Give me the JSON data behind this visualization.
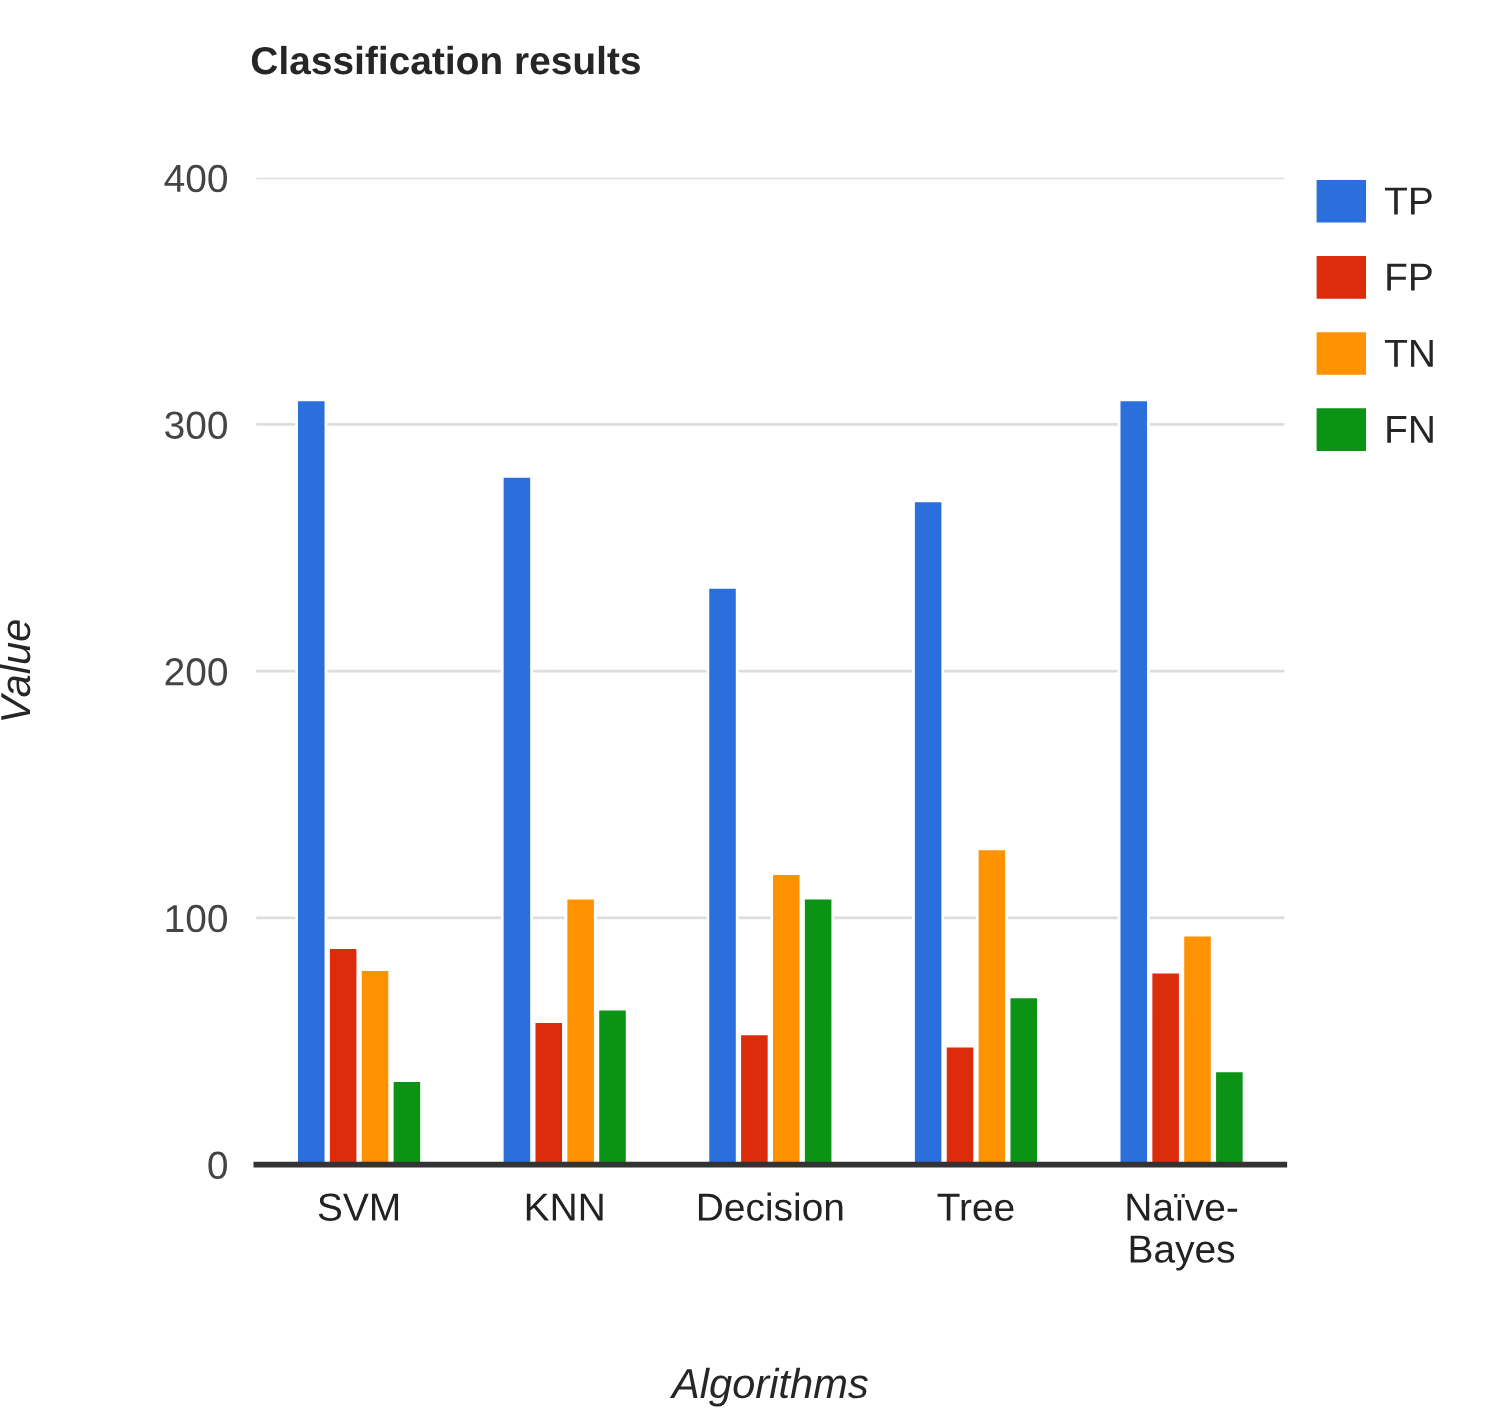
{
  "chart_data": {
    "type": "bar",
    "title": "Classification results",
    "xlabel": "Algorithms",
    "ylabel": "Value",
    "categories": [
      "SVM",
      "KNN",
      "Decision",
      "Tree",
      "Naïve-\nBayes"
    ],
    "series": [
      {
        "name": "TP",
        "color": "#2a6fdb",
        "values": [
          310,
          279,
          234,
          269,
          310
        ]
      },
      {
        "name": "FP",
        "color": "#dc2c0c",
        "values": [
          88,
          58,
          53,
          48,
          78
        ]
      },
      {
        "name": "TN",
        "color": "#ff9200",
        "values": [
          79,
          108,
          118,
          128,
          93
        ]
      },
      {
        "name": "FN",
        "color": "#0b9315",
        "values": [
          34,
          63,
          108,
          68,
          38
        ]
      }
    ],
    "ylim": [
      0,
      400
    ],
    "yticks": [
      0,
      100,
      200,
      300,
      400
    ],
    "grid": "y",
    "legend": "top right"
  }
}
